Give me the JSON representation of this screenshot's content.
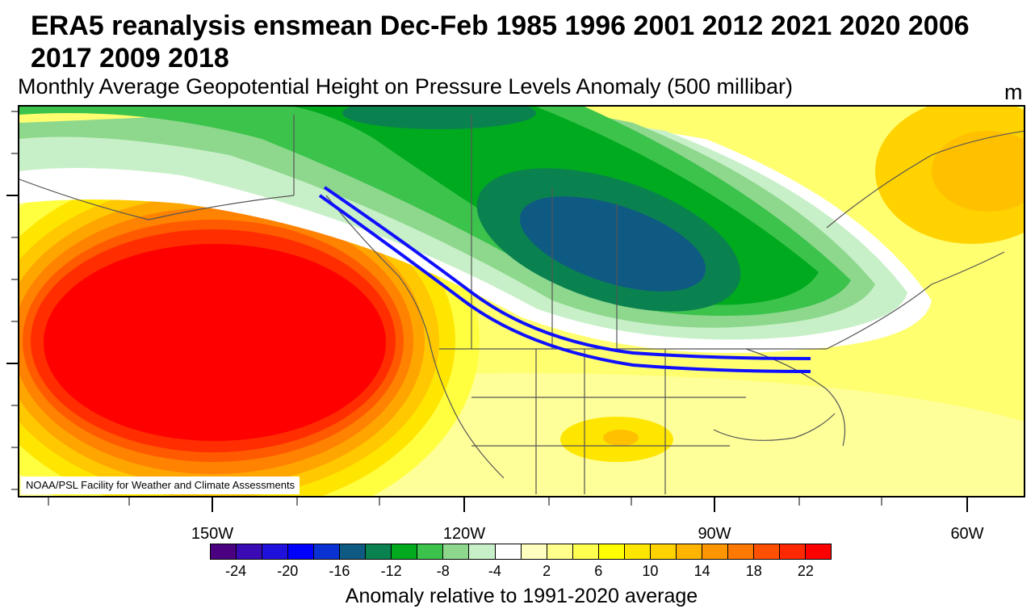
{
  "title": "ERA5 reanalysis ensmean Dec-Feb 1985 1996 2001 2012 2021 2020 2006 2017 2009 2018",
  "subtitle": "Monthly Average Geopotential Height on Pressure Levels Anomaly (500 millibar)",
  "units": "m",
  "credit": "NOAA/PSL Facility for Weather and Climate Assessments",
  "longitude_labels": [
    "150W",
    "120W",
    "90W",
    "60W"
  ],
  "colorbar": {
    "colors": [
      "#4b0082",
      "#3a0ab4",
      "#2010dc",
      "#0000ff",
      "#0a32d2",
      "#0f5a82",
      "#0a8250",
      "#00aa1e",
      "#3cc34b",
      "#8ed88e",
      "#c8f0c8",
      "#ffffff",
      "#ffffc0",
      "#ffff8c",
      "#ffff50",
      "#ffff00",
      "#ffe600",
      "#ffd200",
      "#ffb400",
      "#ff9600",
      "#ff7800",
      "#ff5000",
      "#ff2800",
      "#ff0000"
    ],
    "tick_labels": [
      "-24",
      "-20",
      "-16",
      "-12",
      "-8",
      "-4",
      "2",
      "6",
      "10",
      "14",
      "18",
      "22"
    ],
    "caption": "Anomaly relative to 1991-2020 average"
  },
  "features": {
    "ridge": "positive-anomaly-ridge-north-pacific",
    "trough": "negative-anomaly-trough-central-canada",
    "jet": "blue-jet-stream-arrows"
  }
}
